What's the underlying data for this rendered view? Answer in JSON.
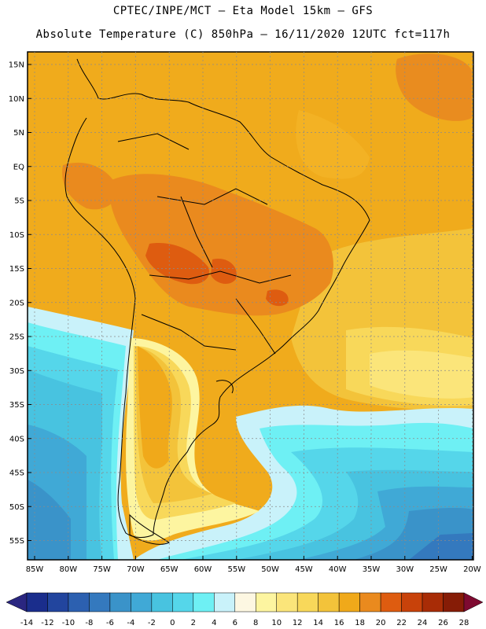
{
  "title_line1": "CPTEC/INPE/MCT –  Eta Model 15km – GFS",
  "title_line2": "Absolute Temperature (C) 850hPa – 16/11/2020 12UTC fct=117h",
  "lat_ticks": [
    {
      "label": "15N",
      "lat": 15
    },
    {
      "label": "10N",
      "lat": 10
    },
    {
      "label": "5N",
      "lat": 5
    },
    {
      "label": "EQ",
      "lat": 0
    },
    {
      "label": "5S",
      "lat": -5
    },
    {
      "label": "10S",
      "lat": -10
    },
    {
      "label": "15S",
      "lat": -15
    },
    {
      "label": "20S",
      "lat": -20
    },
    {
      "label": "25S",
      "lat": -25
    },
    {
      "label": "30S",
      "lat": -30
    },
    {
      "label": "35S",
      "lat": -35
    },
    {
      "label": "40S",
      "lat": -40
    },
    {
      "label": "45S",
      "lat": -45
    },
    {
      "label": "50S",
      "lat": -50
    },
    {
      "label": "55S",
      "lat": -55
    }
  ],
  "lon_ticks": [
    {
      "label": "85W",
      "lon": -85
    },
    {
      "label": "80W",
      "lon": -80
    },
    {
      "label": "75W",
      "lon": -75
    },
    {
      "label": "70W",
      "lon": -70
    },
    {
      "label": "65W",
      "lon": -65
    },
    {
      "label": "60W",
      "lon": -60
    },
    {
      "label": "55W",
      "lon": -55
    },
    {
      "label": "50W",
      "lon": -50
    },
    {
      "label": "45W",
      "lon": -45
    },
    {
      "label": "40W",
      "lon": -40
    },
    {
      "label": "35W",
      "lon": -35
    },
    {
      "label": "30W",
      "lon": -30
    },
    {
      "label": "25W",
      "lon": -25
    },
    {
      "label": "20W",
      "lon": -20
    }
  ],
  "colorbar": {
    "labels": [
      "-14",
      "-12",
      "-10",
      "-8",
      "-6",
      "-4",
      "-2",
      "0",
      "2",
      "4",
      "6",
      "8",
      "10",
      "12",
      "14",
      "16",
      "18",
      "20",
      "22",
      "24",
      "26",
      "28"
    ],
    "colors": [
      "#1a2d8c",
      "#22459e",
      "#2c60b0",
      "#3479be",
      "#3a93c9",
      "#40a9d6",
      "#48c3e0",
      "#55d6ea",
      "#6ef0f4",
      "#c9f2fa",
      "#fdf7e2",
      "#fdf5a0",
      "#fbe57a",
      "#f8d85a",
      "#f3c33a",
      "#f0a91a",
      "#ea8a1e",
      "#de5c10",
      "#c8420a",
      "#a82c06",
      "#861c06"
    ],
    "end_low": "#2a2680",
    "end_high": "#7e0a30"
  }
}
